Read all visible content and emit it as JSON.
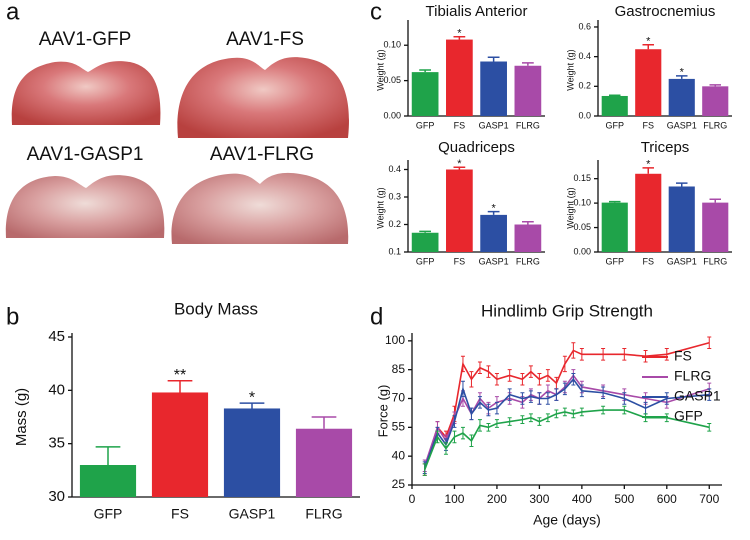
{
  "panel_labels": [
    "a",
    "b",
    "c",
    "d"
  ],
  "photos": {
    "labels": [
      "AAV1-GFP",
      "AAV1-FS",
      "AAV1-GASP1",
      "AAV1-FLRG"
    ]
  },
  "chart_data": [
    {
      "type": "bar",
      "title": "Body Mass",
      "ylabel": "Mass (g)",
      "categories": [
        "GFP",
        "FS",
        "GASP1",
        "FLRG"
      ],
      "colors": [
        "#1fa34a",
        "#e8272d",
        "#2c4fa3",
        "#a84aa8"
      ],
      "values": [
        33.0,
        39.8,
        38.3,
        36.4
      ],
      "errors": [
        1.7,
        1.1,
        0.5,
        1.1
      ],
      "significance": [
        null,
        "**",
        "*",
        null
      ],
      "ylim": [
        30,
        45
      ],
      "yticks": [
        30,
        35,
        40,
        45
      ]
    },
    {
      "type": "bar",
      "title": "Tibialis Anterior",
      "ylabel": "Weight (g)",
      "categories": [
        "GFP",
        "FS",
        "GASP1",
        "FLRG"
      ],
      "colors": [
        "#1fa34a",
        "#e8272d",
        "#2c4fa3",
        "#a84aa8"
      ],
      "values": [
        0.062,
        0.108,
        0.077,
        0.071
      ],
      "errors": [
        0.003,
        0.004,
        0.006,
        0.004
      ],
      "significance": [
        null,
        "*",
        null,
        null
      ],
      "ylim": [
        0,
        0.13
      ],
      "yticks": [
        {
          "value": 0,
          "label": "0.00"
        },
        0.05,
        {
          "value": 0.1,
          "label": "0.10"
        }
      ]
    },
    {
      "type": "bar",
      "title": "Gastrocnemius",
      "ylabel": "Weight (g)",
      "categories": [
        "GFP",
        "FS",
        "GASP1",
        "FLRG"
      ],
      "colors": [
        "#1fa34a",
        "#e8272d",
        "#2c4fa3",
        "#a84aa8"
      ],
      "values": [
        0.135,
        0.45,
        0.25,
        0.2
      ],
      "errors": [
        0.005,
        0.03,
        0.02,
        0.01
      ],
      "significance": [
        null,
        "*",
        "*",
        null
      ],
      "ylim": [
        0,
        0.62
      ],
      "yticks": [
        {
          "value": 0,
          "label": "0.0"
        },
        0.2,
        0.4,
        0.6
      ]
    },
    {
      "type": "bar",
      "title": "Quadriceps",
      "ylabel": "Weight (g)",
      "categories": [
        "GFP",
        "FS",
        "GASP1",
        "FLRG"
      ],
      "colors": [
        "#1fa34a",
        "#e8272d",
        "#2c4fa3",
        "#a84aa8"
      ],
      "values": [
        0.17,
        0.4,
        0.235,
        0.2
      ],
      "errors": [
        0.005,
        0.008,
        0.012,
        0.01
      ],
      "significance": [
        null,
        "*",
        "*",
        null
      ],
      "ylim": [
        0.1,
        0.42
      ],
      "yticks": [
        0.1,
        0.2,
        0.3,
        0.4
      ]
    },
    {
      "type": "bar",
      "title": "Triceps",
      "ylabel": "Weight (g)",
      "categories": [
        "GFP",
        "FS",
        "GASP1",
        "FLRG"
      ],
      "colors": [
        "#1fa34a",
        "#e8272d",
        "#2c4fa3",
        "#a84aa8"
      ],
      "values": [
        0.101,
        0.16,
        0.134,
        0.101
      ],
      "errors": [
        0.002,
        0.012,
        0.007,
        0.007
      ],
      "significance": [
        null,
        "*",
        null,
        null
      ],
      "ylim": [
        0,
        0.18
      ],
      "yticks": [
        {
          "value": 0,
          "label": "0.00"
        },
        0.05,
        {
          "value": 0.1,
          "label": "0.10"
        },
        0.15
      ]
    },
    {
      "type": "line",
      "title": "Hindlimb Grip Strength",
      "xlabel": "Age (days)",
      "ylabel": "Force (g)",
      "x": [
        30,
        60,
        80,
        100,
        120,
        140,
        160,
        180,
        200,
        230,
        260,
        280,
        300,
        320,
        340,
        360,
        380,
        400,
        450,
        500,
        550,
        600,
        700
      ],
      "series": [
        {
          "name": "FS",
          "color": "#e8272d",
          "values": [
            33,
            55,
            50,
            62,
            88,
            80,
            86,
            84,
            80,
            82,
            80,
            84,
            80,
            82,
            78,
            88,
            95,
            93,
            93,
            93,
            92,
            93,
            99
          ],
          "errors": [
            3,
            3,
            3,
            4,
            4,
            4,
            3,
            3,
            3,
            3,
            3,
            3,
            3,
            3,
            3,
            4,
            4,
            3,
            3,
            3,
            3,
            3,
            3
          ]
        },
        {
          "name": "FLRG",
          "color": "#a84aa8",
          "values": [
            35,
            55,
            48,
            60,
            70,
            62,
            70,
            65,
            68,
            70,
            68,
            72,
            70,
            74,
            72,
            76,
            82,
            76,
            74,
            72,
            70,
            68,
            75
          ],
          "errors": [
            3,
            3,
            3,
            3,
            4,
            3,
            3,
            3,
            3,
            3,
            3,
            3,
            3,
            3,
            3,
            3,
            3,
            3,
            3,
            3,
            3,
            3,
            3
          ]
        },
        {
          "name": "GASP1",
          "color": "#2c4fa3",
          "values": [
            34,
            52,
            46,
            58,
            75,
            62,
            68,
            64,
            65,
            72,
            70,
            71,
            70,
            70,
            72,
            75,
            80,
            74,
            73,
            70,
            65,
            70,
            72
          ],
          "errors": [
            3,
            3,
            3,
            3,
            4,
            3,
            3,
            3,
            3,
            3,
            3,
            3,
            3,
            3,
            3,
            3,
            3,
            3,
            3,
            3,
            3,
            3,
            3
          ]
        },
        {
          "name": "GFP",
          "color": "#1fa34a",
          "values": [
            33,
            50,
            44,
            50,
            52,
            48,
            56,
            55,
            57,
            58,
            59,
            60,
            58,
            60,
            62,
            63,
            62,
            63,
            64,
            64,
            60,
            60,
            55
          ],
          "errors": [
            3,
            3,
            3,
            3,
            3,
            3,
            3,
            2,
            2,
            2,
            2,
            2,
            2,
            2,
            2,
            2,
            2,
            2,
            2,
            2,
            2,
            2,
            2
          ]
        }
      ],
      "xlim": [
        0,
        730
      ],
      "xticks": [
        0,
        100,
        200,
        300,
        400,
        500,
        600,
        700
      ],
      "ylim": [
        25,
        102
      ],
      "yticks": [
        25,
        40,
        55,
        70,
        85,
        100
      ],
      "legend": "upper right"
    }
  ]
}
